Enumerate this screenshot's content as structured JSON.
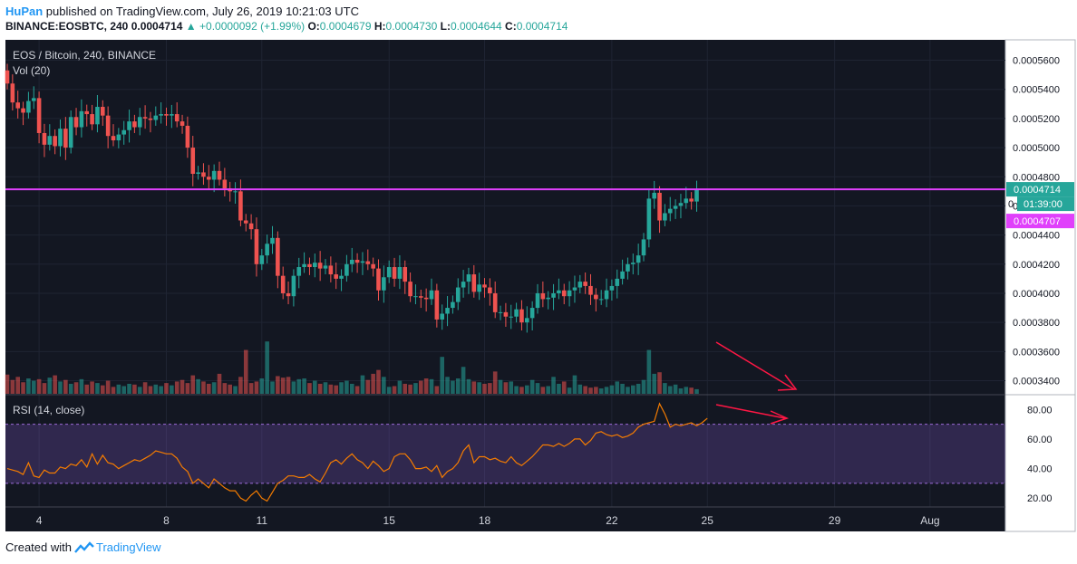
{
  "header": {
    "author": "HuPan",
    "published": "published on TradingView.com, July 26, 2019 10:21:03 UTC",
    "symbol": "BINANCE:EOSBTC, 240",
    "last": "0.0004714",
    "change": "+0.0000092 (+1.99%)",
    "o_label": "O:",
    "o": "0.0004679",
    "h_label": "H:",
    "h": "0.0004730",
    "l_label": "L:",
    "l": "0.0004644",
    "c_label": "C:",
    "c": "0.0004714"
  },
  "footer": {
    "created_with": "Created with",
    "brand": "TradingView"
  },
  "colors": {
    "background": "#131722",
    "up": "#26a69a",
    "down": "#ef5350",
    "line": "#e040fb",
    "rsi": "#f57c00",
    "annotation": "#ff1744",
    "rsi_band": "#7e57c2",
    "axis_text": "#131722"
  },
  "chart_data": [
    {
      "type": "candlestick",
      "title": "EOS / Bitcoin, 240, BINANCE",
      "volume_label": "Vol (20)",
      "y_axis_ticks": [
        "0.0005600",
        "0.0005400",
        "0.0005200",
        "0.0005000",
        "0.0004800",
        "0.0004600",
        "0.0004400",
        "0.0004200",
        "0.0004000",
        "0.0003800",
        "0.0003600",
        "0.0003400"
      ],
      "ylim": [
        0.000331,
        0.000574
      ],
      "x_ticks": [
        {
          "label": "4",
          "i": 6
        },
        {
          "label": "8",
          "i": 30
        },
        {
          "label": "11",
          "i": 48
        },
        {
          "label": "15",
          "i": 72
        },
        {
          "label": "18",
          "i": 90
        },
        {
          "label": "22",
          "i": 114
        },
        {
          "label": "25",
          "i": 132
        },
        {
          "label": "29",
          "i": 156
        },
        {
          "label": "Aug",
          "i": 174
        }
      ],
      "price_labels": {
        "last": "0.0004714",
        "countdown": "01:39:00",
        "level": "0.0004707",
        "level_cut": "0.00048"
      },
      "horizontal_line": 0.0004714,
      "candles_close": [
        0.000544,
        0.000531,
        0.000527,
        0.000524,
        0.000532,
        0.000534,
        0.00051,
        0.000502,
        0.000508,
        0.000501,
        0.000513,
        0.0005,
        0.000521,
        0.000514,
        0.000525,
        0.000523,
        0.000516,
        0.000528,
        0.000522,
        0.000508,
        0.000505,
        0.000509,
        0.000512,
        0.000518,
        0.000514,
        0.000521,
        0.00052,
        0.000519,
        0.000522,
        0.000523,
        0.000522,
        0.000523,
        0.000518,
        0.000515,
        0.0005,
        0.000482,
        0.000483,
        0.00048,
        0.000478,
        0.000484,
        0.000478,
        0.000472,
        0.00047,
        0.00047,
        0.00045,
        0.000448,
        0.000444,
        0.00042,
        0.000426,
        0.000434,
        0.000438,
        0.000412,
        0.0004,
        0.000398,
        0.000412,
        0.000418,
        0.00042,
        0.000418,
        0.000421,
        0.000417,
        0.000419,
        0.000413,
        0.00041,
        0.000412,
        0.00042,
        0.000423,
        0.000421,
        0.000422,
        0.00042,
        0.000417,
        0.000402,
        0.000411,
        0.000418,
        0.00041,
        0.000418,
        0.000408,
        0.000398,
        0.000398,
        0.000397,
        0.000396,
        0.000402,
        0.000382,
        0.000386,
        0.00039,
        0.000394,
        0.000404,
        0.000408,
        0.000413,
        0.000401,
        0.000406,
        0.000404,
        0.0004,
        0.000387,
        0.000387,
        0.000384,
        0.000384,
        0.000389,
        0.00038,
        0.000383,
        0.00039,
        0.0004,
        0.000396,
        0.000397,
        0.0004,
        0.000402,
        0.000398,
        0.000402,
        0.000404,
        0.000408,
        0.000405,
        0.000399,
        0.000396,
        0.000396,
        0.000402,
        0.000405,
        0.00041,
        0.000415,
        0.00042,
        0.000421,
        0.000426,
        0.000437,
        0.000465,
        0.000469,
        0.00045,
        0.000455,
        0.000458,
        0.00046,
        0.000462,
        0.000465,
        0.000463,
        0.000471
      ],
      "candles_open": 0.000553,
      "volume_rel": [
        0.25,
        0.18,
        0.22,
        0.15,
        0.2,
        0.17,
        0.19,
        0.14,
        0.21,
        0.24,
        0.16,
        0.18,
        0.13,
        0.15,
        0.19,
        0.12,
        0.16,
        0.14,
        0.11,
        0.17,
        0.09,
        0.12,
        0.1,
        0.13,
        0.12,
        0.09,
        0.15,
        0.1,
        0.12,
        0.1,
        0.14,
        0.11,
        0.16,
        0.18,
        0.14,
        0.24,
        0.19,
        0.16,
        0.13,
        0.15,
        0.26,
        0.14,
        0.12,
        0.1,
        0.22,
        0.57,
        0.14,
        0.16,
        0.2,
        0.68,
        0.16,
        0.23,
        0.21,
        0.22,
        0.16,
        0.19,
        0.2,
        0.14,
        0.17,
        0.13,
        0.15,
        0.12,
        0.11,
        0.15,
        0.17,
        0.13,
        0.1,
        0.24,
        0.18,
        0.26,
        0.31,
        0.22,
        0.09,
        0.1,
        0.17,
        0.13,
        0.12,
        0.14,
        0.17,
        0.2,
        0.19,
        0.1,
        0.48,
        0.22,
        0.17,
        0.2,
        0.35,
        0.19,
        0.16,
        0.15,
        0.13,
        0.14,
        0.29,
        0.18,
        0.15,
        0.16,
        0.1,
        0.09,
        0.11,
        0.18,
        0.14,
        0.09,
        0.1,
        0.22,
        0.13,
        0.16,
        0.08,
        0.24,
        0.12,
        0.1,
        0.08,
        0.09,
        0.07,
        0.09,
        0.11,
        0.16,
        0.13,
        0.09,
        0.11,
        0.13,
        0.18,
        0.57,
        0.26,
        0.28,
        0.14,
        0.1,
        0.12,
        0.07,
        0.09,
        0.08,
        0.06
      ]
    },
    {
      "type": "line",
      "title": "RSI (14, close)",
      "y_axis_ticks": [
        "80.00",
        "60.00",
        "40.00",
        "20.00"
      ],
      "ylim": [
        14,
        90
      ],
      "bands": [
        30,
        70
      ],
      "values": [
        40,
        39,
        38,
        36,
        44,
        35,
        34,
        39,
        37,
        37,
        41,
        40,
        43,
        42,
        46,
        41,
        50,
        43,
        49,
        44,
        43,
        40,
        42,
        44,
        46,
        45,
        47,
        49,
        52,
        51,
        50,
        50,
        47,
        41,
        38,
        30,
        33,
        30,
        27,
        33,
        30,
        27,
        25,
        25,
        20,
        18,
        22,
        25,
        20,
        18,
        24,
        30,
        32,
        35,
        35,
        34,
        34,
        36,
        33,
        31,
        37,
        44,
        46,
        43,
        47,
        50,
        46,
        44,
        40,
        45,
        42,
        38,
        40,
        48,
        50,
        50,
        46,
        40,
        40,
        41,
        38,
        42,
        34,
        38,
        40,
        44,
        52,
        56,
        44,
        48,
        48,
        46,
        47,
        45,
        44,
        48,
        44,
        42,
        45,
        48,
        52,
        56,
        56,
        55,
        57,
        55,
        57,
        60,
        60,
        56,
        59,
        64,
        65,
        63,
        62,
        63,
        61,
        62,
        64,
        68,
        70,
        71,
        72,
        84,
        77,
        68,
        70,
        69,
        70,
        71,
        69,
        71,
        74
      ],
      "annotation": "red arrow showing declining RSI / volume while price rises"
    }
  ]
}
